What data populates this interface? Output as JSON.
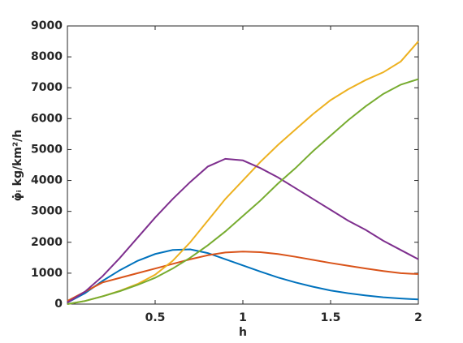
{
  "chart_data": {
    "type": "line",
    "xlabel": "h",
    "ylabel": "φ̇ᵢ  kg/km²/h",
    "x": [
      0,
      0.1,
      0.2,
      0.3,
      0.4,
      0.5,
      0.6,
      0.7,
      0.8,
      0.9,
      1.0,
      1.1,
      1.2,
      1.3,
      1.4,
      1.5,
      1.6,
      1.7,
      1.8,
      1.9,
      2.0
    ],
    "series": [
      {
        "color": "#0072BD",
        "values": [
          50,
          350,
          750,
          1100,
          1400,
          1620,
          1750,
          1770,
          1650,
          1450,
          1250,
          1050,
          860,
          700,
          560,
          440,
          350,
          280,
          220,
          180,
          150
        ]
      },
      {
        "color": "#D95319",
        "values": [
          100,
          400,
          700,
          850,
          1000,
          1150,
          1300,
          1450,
          1580,
          1670,
          1700,
          1680,
          1620,
          1530,
          1430,
          1330,
          1240,
          1150,
          1070,
          1000,
          970
        ]
      },
      {
        "color": "#EDB120",
        "values": [
          0,
          100,
          250,
          430,
          650,
          950,
          1400,
          2000,
          2700,
          3400,
          4000,
          4600,
          5150,
          5650,
          6150,
          6600,
          6950,
          7250,
          7500,
          7850,
          8500
        ]
      },
      {
        "color": "#7E2F8E",
        "values": [
          50,
          400,
          900,
          1500,
          2150,
          2800,
          3400,
          3950,
          4450,
          4700,
          4650,
          4400,
          4100,
          3750,
          3400,
          3050,
          2700,
          2400,
          2050,
          1750,
          1450
        ]
      },
      {
        "color": "#77AC30",
        "values": [
          0,
          100,
          250,
          420,
          620,
          850,
          1150,
          1500,
          1900,
          2350,
          2850,
          3350,
          3900,
          4400,
          4950,
          5450,
          5950,
          6400,
          6800,
          7100,
          7280
        ]
      }
    ],
    "xlim": [
      0,
      2
    ],
    "xticks": [
      0.5,
      1,
      1.5,
      2
    ],
    "ylim": [
      0,
      9000
    ],
    "yticks": [
      0,
      1000,
      2000,
      3000,
      4000,
      5000,
      6000,
      7000,
      8000,
      9000
    ],
    "grid": false
  }
}
